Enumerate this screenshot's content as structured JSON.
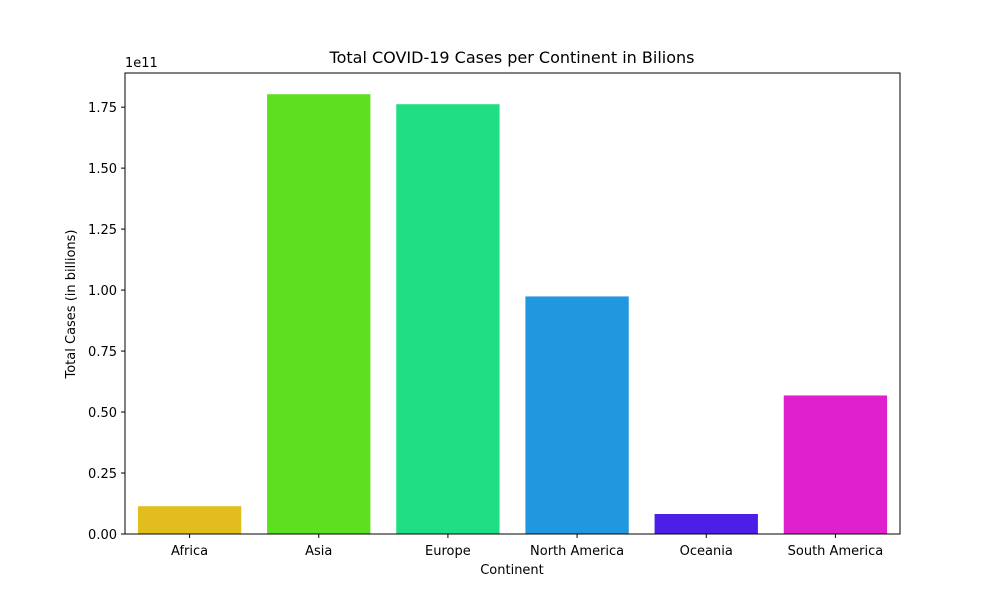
{
  "chart_data": {
    "type": "bar",
    "title": "Total COVID-19 Cases per Continent in Bilions",
    "xlabel": "Continent",
    "ylabel": "Total Cases (in billions)",
    "offset_label": "1e11",
    "categories": [
      "Africa",
      "Asia",
      "Europe",
      "North America",
      "Oceania",
      "South America"
    ],
    "values": [
      11400000000,
      180300000000,
      176200000000,
      97400000000,
      8200000000,
      56800000000
    ],
    "colors": [
      "#e1be1e",
      "#5ce01f",
      "#20de83",
      "#2197e0",
      "#4b1fe6",
      "#e020cf"
    ],
    "ylim": [
      0,
      189000000000
    ],
    "yticks": [
      0,
      25000000000,
      50000000000,
      75000000000,
      100000000000,
      125000000000,
      150000000000,
      175000000000
    ],
    "ytick_labels": [
      "0.00",
      "0.25",
      "0.50",
      "0.75",
      "1.00",
      "1.25",
      "1.50",
      "1.75"
    ],
    "grid": false,
    "legend": "none"
  }
}
